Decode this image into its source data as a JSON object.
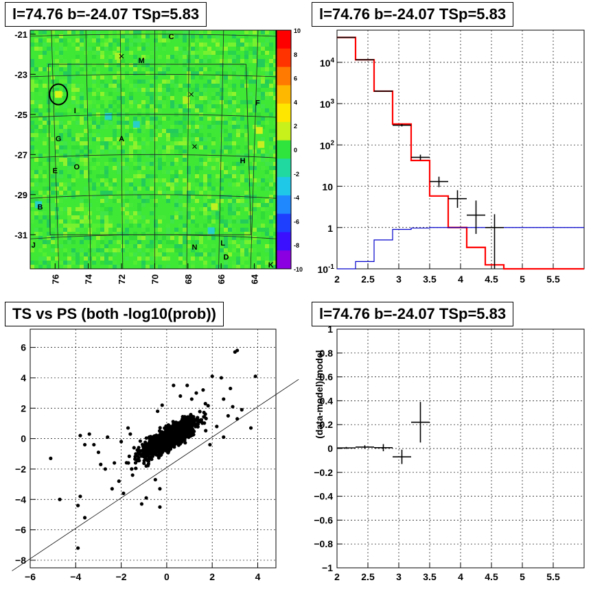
{
  "titles": {
    "map": "l=74.76 b=-24.07 TSp=5.83",
    "spectrum": "l=74.76 b=-24.07 TSp=5.83",
    "scatter": "TS vs PS (both -log10(prob))",
    "residual": "l=74.76 b=-24.07 TSp=5.83"
  },
  "chart_data": [
    {
      "type": "heatmap",
      "title": "l=74.76 b=-24.07 TSp=5.83",
      "xlim": [
        77.5,
        62.7
      ],
      "ylim": [
        -32.7,
        -20.8
      ],
      "xticks": [
        76,
        74,
        72,
        70,
        68,
        66,
        64
      ],
      "yticks": [
        -21,
        -23,
        -25,
        -27,
        -29,
        -31
      ],
      "colorbar": {
        "min": -10,
        "max": 10,
        "ticks": [
          10,
          8,
          6,
          4,
          2,
          0,
          -2,
          -4,
          -6,
          -8,
          -10
        ]
      },
      "labels": [
        {
          "text": "C",
          "l": 69.0,
          "b": -21.1
        },
        {
          "text": "M",
          "l": 70.8,
          "b": -22.3
        },
        {
          "text": "F",
          "l": 63.8,
          "b": -24.4
        },
        {
          "text": "I",
          "l": 74.8,
          "b": -24.8
        },
        {
          "text": "G",
          "l": 75.8,
          "b": -26.2
        },
        {
          "text": "A",
          "l": 72.0,
          "b": -26.2
        },
        {
          "text": "H",
          "l": 64.7,
          "b": -27.3
        },
        {
          "text": "E",
          "l": 76.0,
          "b": -27.8
        },
        {
          "text": "O",
          "l": 74.7,
          "b": -27.6
        },
        {
          "text": "B",
          "l": 76.9,
          "b": -29.6
        },
        {
          "text": "J",
          "l": 77.3,
          "b": -31.5
        },
        {
          "text": "N",
          "l": 67.6,
          "b": -31.6
        },
        {
          "text": "L",
          "l": 65.9,
          "b": -31.4
        },
        {
          "text": "D",
          "l": 65.7,
          "b": -32.1
        },
        {
          "text": "K",
          "l": 63.0,
          "b": -32.5
        }
      ],
      "markers": [
        {
          "l": 72.0,
          "b": -22.1
        },
        {
          "l": 67.8,
          "b": -24.0
        },
        {
          "l": 67.6,
          "b": -26.6
        }
      ],
      "source_circle": {
        "l": 75.8,
        "b": -24.0
      }
    },
    {
      "type": "line",
      "title": "l=74.76 b=-24.07 TSp=5.83",
      "xlim": [
        2,
        6
      ],
      "ylim": [
        0.1,
        60000
      ],
      "log_y": true,
      "xticks": [
        2,
        2.5,
        3,
        3.5,
        4,
        4.5,
        5,
        5.5
      ],
      "yticks": [
        "10^-1",
        "1",
        "10",
        "10^2",
        "10^3",
        "10^4"
      ],
      "series": [
        {
          "color": "#ff0000",
          "style": "step",
          "edges": [
            2,
            2.3,
            2.6,
            2.9,
            3.2,
            3.5,
            3.8,
            4.1,
            4.4,
            4.7,
            6
          ],
          "values": [
            40000,
            11500,
            2000,
            320,
            42,
            5.8,
            1.0,
            0.33,
            0.125,
            0.1
          ]
        },
        {
          "color": "#0000cc",
          "style": "step",
          "edges": [
            2,
            2.3,
            2.6,
            2.9,
            3.2,
            3.5,
            3.8,
            4.1,
            4.4,
            4.7,
            6
          ],
          "values": [
            0.05,
            0.15,
            0.5,
            0.9,
            0.97,
            1.0,
            1.0,
            1.0,
            1.0,
            1.0
          ]
        }
      ],
      "points": [
        {
          "x": 2.15,
          "y": 40000,
          "ylo": 40000,
          "yhi": 40000
        },
        {
          "x": 2.45,
          "y": 11500,
          "ylo": 11500,
          "yhi": 11500
        },
        {
          "x": 2.75,
          "y": 2000,
          "ylo": 2000,
          "yhi": 2000
        },
        {
          "x": 3.05,
          "y": 300,
          "ylo": 280,
          "yhi": 320
        },
        {
          "x": 3.35,
          "y": 50,
          "ylo": 43,
          "yhi": 58
        },
        {
          "x": 3.65,
          "y": 13,
          "ylo": 9.5,
          "yhi": 17
        },
        {
          "x": 3.95,
          "y": 5,
          "ylo": 3.0,
          "yhi": 8
        },
        {
          "x": 4.25,
          "y": 2,
          "ylo": 0.7,
          "yhi": 4.5
        },
        {
          "x": 4.55,
          "y": 1.0,
          "ylo": 0.1,
          "yhi": 2.1
        }
      ]
    },
    {
      "type": "scatter",
      "title": "TS vs PS (both -log10(prob))",
      "xlim": [
        -6,
        4.8
      ],
      "ylim": [
        -8.5,
        7.2
      ],
      "xticks": [
        -6,
        -4,
        -2,
        0,
        2,
        4
      ],
      "yticks": [
        -8,
        -6,
        -4,
        -2,
        0,
        2,
        4,
        6
      ],
      "reference_line": {
        "slope": 1,
        "intercept": -1.9
      },
      "outliers": [
        [
          -5.1,
          -1.3
        ],
        [
          -4.7,
          -4.0
        ],
        [
          -3.9,
          -7.2
        ],
        [
          -3.6,
          -5.2
        ],
        [
          -3.8,
          -3.8
        ],
        [
          -3.9,
          -4.4
        ],
        [
          -3.8,
          0.2
        ],
        [
          -3.4,
          0.3
        ],
        [
          -3.2,
          -0.4
        ],
        [
          -3.0,
          -0.9
        ],
        [
          -2.9,
          -1.7
        ],
        [
          -2.7,
          -2.0
        ],
        [
          -2.4,
          -3.3
        ],
        [
          -2.3,
          -1.6
        ],
        [
          -2.1,
          -2.8
        ],
        [
          -1.9,
          -3.6
        ],
        [
          -2.0,
          -0.2
        ],
        [
          -1.7,
          0.7
        ],
        [
          -1.5,
          -2.4
        ],
        [
          -1.3,
          -1.4
        ],
        [
          -1.1,
          -4.3
        ],
        [
          -0.9,
          -3.9
        ],
        [
          -0.3,
          -4.5
        ],
        [
          -0.9,
          -1.8
        ],
        [
          -1.2,
          -0.8
        ],
        [
          -0.5,
          -2.7
        ],
        [
          -0.3,
          -3.3
        ],
        [
          -1.6,
          0.3
        ],
        [
          -2.6,
          0.1
        ],
        [
          -3.6,
          -0.4
        ],
        [
          3.0,
          5.7
        ],
        [
          3.1,
          5.8
        ],
        [
          3.9,
          4.1
        ],
        [
          2.8,
          3.3
        ],
        [
          2.5,
          2.6
        ],
        [
          3.3,
          1.9
        ],
        [
          3.7,
          0.7
        ],
        [
          3.1,
          1.3
        ],
        [
          2.4,
          4.0
        ],
        [
          2.0,
          4.1
        ],
        [
          1.6,
          3.2
        ],
        [
          1.3,
          3.0
        ],
        [
          1.1,
          2.6
        ],
        [
          2.2,
          0.8
        ],
        [
          2.5,
          0.1
        ],
        [
          1.9,
          -0.4
        ],
        [
          0.9,
          3.5
        ],
        [
          0.6,
          2.8
        ],
        [
          0.3,
          3.5
        ],
        [
          -0.2,
          2.2
        ],
        [
          -0.4,
          1.8
        ],
        [
          1.7,
          2.3
        ],
        [
          2.9,
          2.1
        ],
        [
          2.7,
          1.5
        ]
      ]
    },
    {
      "type": "line",
      "title": "l=74.76 b=-24.07 TSp=5.83",
      "xlim": [
        2,
        6
      ],
      "ylim": [
        -1,
        1
      ],
      "xticks": [
        2,
        2.5,
        3,
        3.5,
        4,
        4.5,
        5,
        5.5
      ],
      "yticks": [
        -1,
        -0.8,
        -0.6,
        -0.4,
        -0.2,
        0,
        0.2,
        0.4,
        0.6,
        0.8,
        1
      ],
      "ylabel": "(data-model)/model",
      "points": [
        {
          "x": 2.15,
          "y": 0.005,
          "xerr": 0.15,
          "yerr": 0.008
        },
        {
          "x": 2.45,
          "y": 0.012,
          "xerr": 0.15,
          "yerr": 0.015
        },
        {
          "x": 2.75,
          "y": 0.007,
          "xerr": 0.15,
          "yerr": 0.03
        },
        {
          "x": 3.05,
          "y": -0.07,
          "xerr": 0.15,
          "yerr": 0.06
        },
        {
          "x": 3.35,
          "y": 0.22,
          "xerr": 0.15,
          "yerr": 0.17
        }
      ]
    }
  ]
}
